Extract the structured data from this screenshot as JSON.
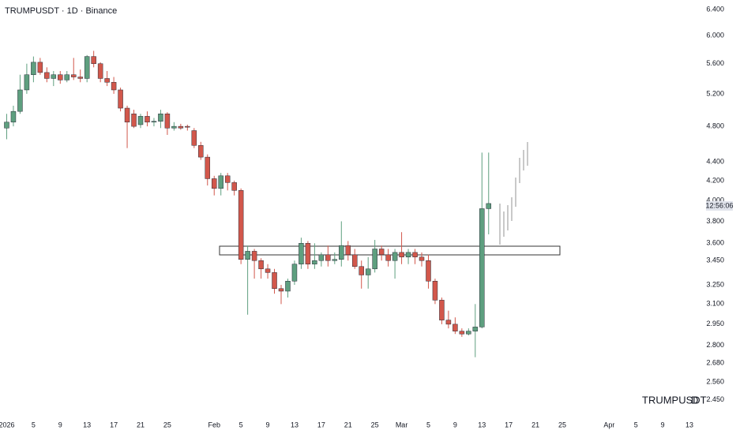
{
  "chart_data": {
    "type": "candlestick",
    "title": "TRUMPUSDT · 1D · Binance",
    "watermark_symbol": "TRUMPUSDT",
    "watermark_interval": "D",
    "countdown": "12:56:06",
    "log_scale": true,
    "up_color": "#5e9f7f",
    "down_color": "#d2574b",
    "x": [
      "2026-01-01",
      "2026-01-02",
      "2026-01-03",
      "2026-01-04",
      "2026-01-05",
      "2026-01-06",
      "2026-01-07",
      "2026-01-08",
      "2026-01-09",
      "2026-01-10",
      "2026-01-11",
      "2026-01-12",
      "2026-01-13",
      "2026-01-14",
      "2026-01-15",
      "2026-01-16",
      "2026-01-17",
      "2026-01-18",
      "2026-01-19",
      "2026-01-20",
      "2026-01-21",
      "2026-01-22",
      "2026-01-23",
      "2026-01-24",
      "2026-01-25",
      "2026-01-26",
      "2026-01-27",
      "2026-01-28",
      "2026-01-29",
      "2026-01-30",
      "2026-01-31",
      "2026-02-01",
      "2026-02-02",
      "2026-02-03",
      "2026-02-04",
      "2026-02-05",
      "2026-02-06",
      "2026-02-07",
      "2026-02-08",
      "2026-02-09",
      "2026-02-10",
      "2026-02-11",
      "2026-02-12",
      "2026-02-13",
      "2026-02-14",
      "2026-02-15",
      "2026-02-16",
      "2026-02-17",
      "2026-02-18",
      "2026-02-19",
      "2026-02-20",
      "2026-02-21",
      "2026-02-22",
      "2026-02-23",
      "2026-02-24",
      "2026-02-25",
      "2026-02-26",
      "2026-02-27",
      "2026-02-28",
      "2026-03-01",
      "2026-03-02",
      "2026-03-03",
      "2026-03-04",
      "2026-03-05",
      "2026-03-06",
      "2026-03-07",
      "2026-03-08",
      "2026-03-09",
      "2026-03-10",
      "2026-03-11",
      "2026-03-12",
      "2026-03-13",
      "2026-03-14"
    ],
    "open": [
      4.78,
      4.85,
      4.98,
      5.25,
      5.45,
      5.62,
      5.48,
      5.4,
      5.45,
      5.38,
      5.45,
      5.42,
      5.4,
      5.7,
      5.6,
      5.4,
      5.35,
      5.25,
      5.02,
      4.95,
      4.82,
      4.92,
      4.85,
      4.86,
      4.95,
      4.78,
      4.8,
      4.8,
      4.75,
      4.58,
      4.45,
      4.22,
      4.12,
      4.25,
      4.18,
      4.1,
      3.46,
      3.53,
      3.45,
      3.38,
      3.35,
      3.22,
      3.2,
      3.28,
      3.42,
      3.6,
      3.42,
      3.45,
      3.5,
      3.45,
      3.46,
      3.58,
      3.5,
      3.4,
      3.33,
      3.38,
      3.55,
      3.5,
      3.45,
      3.52,
      3.48,
      3.52,
      3.48,
      3.45,
      3.28,
      3.13,
      2.98,
      2.95,
      2.9,
      2.88,
      2.9,
      2.93,
      3.92
    ],
    "high": [
      4.95,
      5.05,
      5.45,
      5.6,
      5.7,
      5.68,
      5.55,
      5.5,
      5.5,
      5.5,
      5.68,
      5.52,
      5.72,
      5.78,
      5.62,
      5.5,
      5.42,
      5.28,
      5.05,
      5.0,
      4.95,
      4.98,
      4.9,
      5.0,
      4.97,
      4.85,
      4.83,
      4.82,
      4.78,
      4.62,
      4.48,
      4.25,
      4.28,
      4.28,
      4.2,
      4.12,
      3.58,
      3.55,
      3.47,
      3.42,
      3.38,
      3.25,
      3.3,
      3.45,
      3.65,
      3.62,
      3.6,
      3.52,
      3.58,
      3.52,
      3.8,
      3.62,
      3.55,
      3.45,
      3.48,
      3.63,
      3.58,
      3.55,
      3.55,
      3.7,
      3.55,
      3.55,
      3.52,
      3.5,
      3.3,
      3.15,
      3.05,
      3.0,
      2.92,
      2.92,
      3.1,
      4.5,
      4.5
    ],
    "low": [
      4.65,
      4.8,
      4.95,
      5.2,
      5.35,
      5.45,
      5.35,
      5.3,
      5.33,
      5.35,
      5.38,
      5.35,
      5.35,
      5.55,
      5.35,
      5.3,
      5.2,
      4.98,
      4.55,
      4.78,
      4.78,
      4.8,
      4.8,
      4.78,
      4.7,
      4.75,
      4.76,
      4.75,
      4.55,
      4.42,
      4.15,
      4.05,
      4.05,
      4.1,
      4.05,
      3.42,
      3.02,
      3.3,
      3.3,
      3.3,
      3.18,
      3.1,
      3.15,
      3.25,
      3.38,
      3.38,
      3.38,
      3.4,
      3.4,
      3.42,
      3.4,
      3.45,
      3.38,
      3.22,
      3.22,
      3.35,
      3.45,
      3.4,
      3.3,
      3.42,
      3.42,
      3.42,
      3.4,
      3.22,
      3.1,
      2.95,
      2.92,
      2.88,
      2.86,
      2.87,
      2.72,
      2.92,
      3.68
    ],
    "close": [
      4.85,
      4.98,
      5.25,
      5.45,
      5.62,
      5.48,
      5.4,
      5.45,
      5.38,
      5.45,
      5.42,
      5.4,
      5.7,
      5.6,
      5.4,
      5.35,
      5.25,
      5.02,
      4.85,
      4.8,
      4.92,
      4.85,
      4.86,
      4.95,
      4.78,
      4.8,
      4.78,
      4.79,
      4.58,
      4.45,
      4.22,
      4.12,
      4.25,
      4.18,
      4.1,
      3.46,
      3.53,
      3.45,
      3.38,
      3.35,
      3.22,
      3.2,
      3.28,
      3.42,
      3.6,
      3.42,
      3.45,
      3.5,
      3.45,
      3.46,
      3.58,
      3.5,
      3.4,
      3.33,
      3.38,
      3.55,
      3.5,
      3.45,
      3.52,
      3.48,
      3.52,
      3.48,
      3.45,
      3.28,
      3.13,
      2.98,
      2.95,
      2.9,
      2.88,
      2.9,
      2.93,
      3.92,
      3.97
    ],
    "xlim": [
      "2025-12-31",
      "2026-04-15"
    ],
    "xticks": [
      {
        "value": "2026-01-01",
        "label": "2026"
      },
      {
        "value": "2026-01-05",
        "label": "5"
      },
      {
        "value": "2026-01-09",
        "label": "9"
      },
      {
        "value": "2026-01-13",
        "label": "13"
      },
      {
        "value": "2026-01-17",
        "label": "17"
      },
      {
        "value": "2026-01-21",
        "label": "21"
      },
      {
        "value": "2026-01-25",
        "label": "25"
      },
      {
        "value": "2026-02-01",
        "label": "Feb"
      },
      {
        "value": "2026-02-05",
        "label": "5"
      },
      {
        "value": "2026-02-09",
        "label": "9"
      },
      {
        "value": "2026-02-13",
        "label": "13"
      },
      {
        "value": "2026-02-17",
        "label": "17"
      },
      {
        "value": "2026-02-21",
        "label": "21"
      },
      {
        "value": "2026-02-25",
        "label": "25"
      },
      {
        "value": "2026-03-01",
        "label": "Mar"
      },
      {
        "value": "2026-03-05",
        "label": "5"
      },
      {
        "value": "2026-03-09",
        "label": "9"
      },
      {
        "value": "2026-03-13",
        "label": "13"
      },
      {
        "value": "2026-03-17",
        "label": "17"
      },
      {
        "value": "2026-03-21",
        "label": "21"
      },
      {
        "value": "2026-03-25",
        "label": "25"
      },
      {
        "value": "2026-04-01",
        "label": "Apr"
      },
      {
        "value": "2026-04-05",
        "label": "5"
      },
      {
        "value": "2026-04-09",
        "label": "9"
      },
      {
        "value": "2026-04-13",
        "label": "13"
      }
    ],
    "ylim": [
      2.35,
      6.55
    ],
    "yticks": [
      {
        "value": 2.45,
        "label": "2.450"
      },
      {
        "value": 2.56,
        "label": "2.560"
      },
      {
        "value": 2.68,
        "label": "2.680"
      },
      {
        "value": 2.8,
        "label": "2.800"
      },
      {
        "value": 2.95,
        "label": "2.950"
      },
      {
        "value": 3.1,
        "label": "3.100"
      },
      {
        "value": 3.25,
        "label": "3.250"
      },
      {
        "value": 3.45,
        "label": "3.450"
      },
      {
        "value": 3.6,
        "label": "3.600"
      },
      {
        "value": 3.8,
        "label": "3.800"
      },
      {
        "value": 4,
        "label": "4.000"
      },
      {
        "value": 4.2,
        "label": "4.200"
      },
      {
        "value": 4.4,
        "label": "4.400"
      },
      {
        "value": 4.8,
        "label": "4.800"
      },
      {
        "value": 5.2,
        "label": "5.200"
      },
      {
        "value": 5.6,
        "label": "5.600"
      },
      {
        "value": 6,
        "label": "6.000"
      },
      {
        "value": 6.4,
        "label": "6.400"
      }
    ]
  }
}
